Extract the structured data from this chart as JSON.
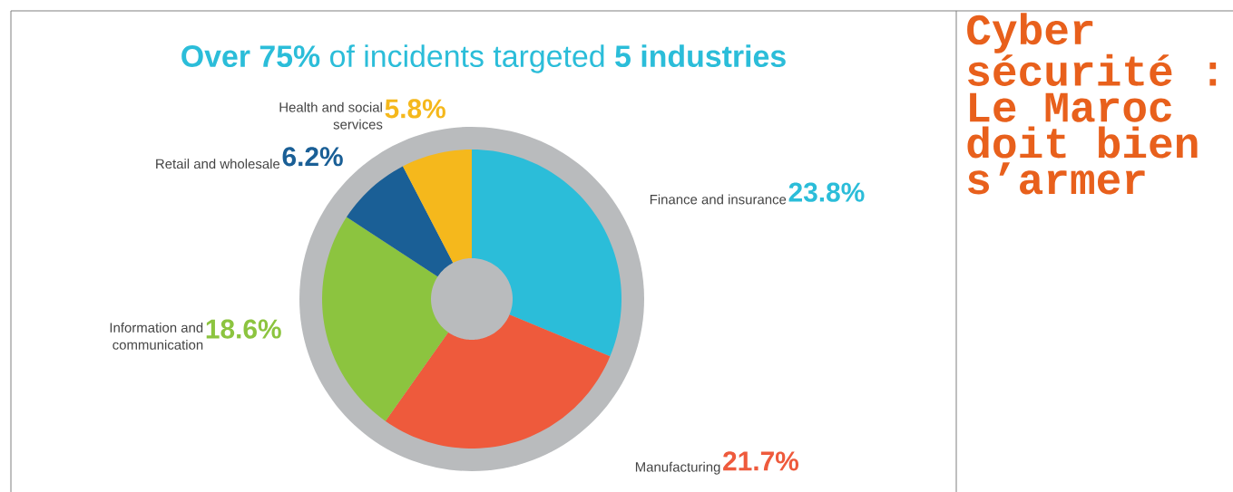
{
  "chart_data": {
    "type": "donut",
    "title": "**Over 75%** of incidents targeted **5 industries**",
    "categories": [
      "Finance and insurance",
      "Manufacturing",
      "Information and communication",
      "Retail and wholesale",
      "Health and social services"
    ],
    "values": [
      23.8,
      21.7,
      18.6,
      6.2,
      5.8
    ],
    "colors": [
      "#2bbdd9",
      "#ee5a3c",
      "#8cc43f",
      "#1a5f96",
      "#f5b81c"
    ],
    "value_labels": [
      "23.8%",
      "21.7%",
      "18.6%",
      "6.2%",
      "5.8%"
    ],
    "annotations": [
      "Cyber sécurité : Le Maroc doit bien s’armer"
    ]
  }
}
